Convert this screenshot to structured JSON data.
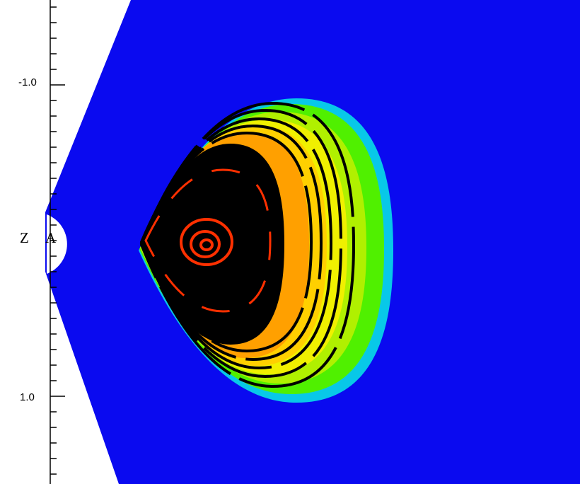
{
  "colors": {
    "background": "#ffffff",
    "field": "#0a0af0",
    "ring_outer": "#08c8e8",
    "ring_green": "#50f000",
    "ring_lime": "#b0f000",
    "ring_yellow": "#f0f000",
    "ring_gold": "#ffd000",
    "ring_orange": "#ffa000",
    "core_black": "#000000",
    "island_red": "#ff3000",
    "axis": "#000000"
  },
  "axis": {
    "tick_labels": [
      "-1.0",
      "1.0"
    ],
    "axis_letters": [
      "Z",
      "A"
    ]
  }
}
